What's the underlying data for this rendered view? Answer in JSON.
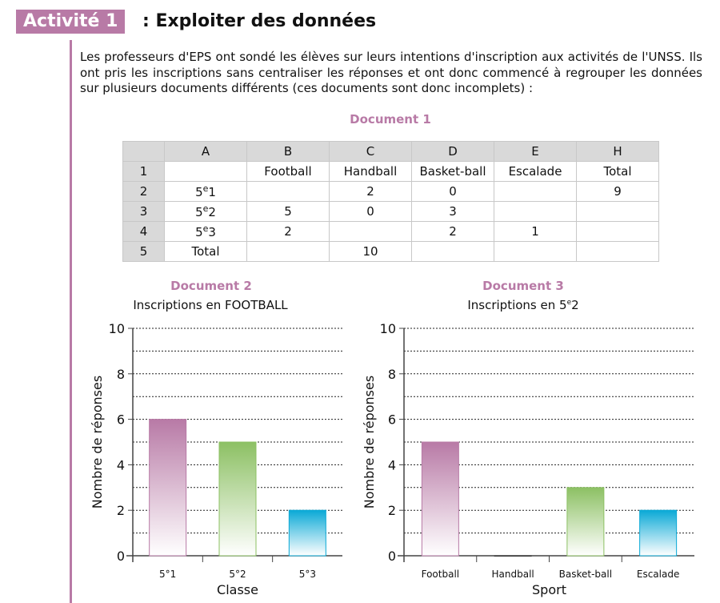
{
  "header": {
    "badge": "Activité 1",
    "title": ": Exploiter des données"
  },
  "intro": "Les professeurs d'EPS ont sondé les élèves sur leurs intentions d'inscription aux activités de l'UNSS. Ils ont pris les inscriptions sans centraliser les réponses et ont donc commencé à regrouper les données sur plusieurs documents différents (ces documents sont donc incomplets) :",
  "doc1": {
    "title": "Document 1",
    "col_headers": [
      "",
      "A",
      "B",
      "C",
      "D",
      "E",
      "H"
    ],
    "rows": [
      {
        "n": "1",
        "cells": [
          "",
          "Football",
          "Handball",
          "Basket-ball",
          "Escalade",
          "Total"
        ]
      },
      {
        "n": "2",
        "base": "5",
        "sup": "e",
        "num": "1",
        "cells": [
          "",
          "2",
          "0",
          "",
          "9"
        ]
      },
      {
        "n": "3",
        "base": "5",
        "sup": "e",
        "num": "2",
        "cells": [
          "5",
          "0",
          "3",
          "",
          ""
        ]
      },
      {
        "n": "4",
        "base": "5",
        "sup": "e",
        "num": "3",
        "cells": [
          "2",
          "",
          "2",
          "1",
          ""
        ]
      },
      {
        "n": "5",
        "label": "Total",
        "cells": [
          "",
          "10",
          "",
          "",
          ""
        ]
      }
    ]
  },
  "chart_data": [
    {
      "type": "bar",
      "doc": "Document 2",
      "title": "Inscriptions en FOOTBALL",
      "xlabel": "Classe",
      "ylabel": "Nombre de réponses",
      "categories": [
        "5°1",
        "5°2",
        "5°3"
      ],
      "values": [
        6,
        5,
        2
      ],
      "ylim": [
        0,
        10
      ],
      "yticks": [
        "0",
        "2",
        "4",
        "6",
        "8",
        "10"
      ],
      "colors": [
        "#b87aa6",
        "#8cc063",
        "#0aa9d6"
      ],
      "grid": "dashed every 1"
    },
    {
      "type": "bar",
      "doc": "Document 3",
      "title_pre": "Inscriptions en 5",
      "title_sup": "e",
      "title_post": "2",
      "xlabel": "Sport",
      "ylabel": "Nombre de réponses",
      "categories": [
        "Football",
        "Handball",
        "Basket-ball",
        "Escalade"
      ],
      "values": [
        5,
        0,
        3,
        2
      ],
      "ylim": [
        0,
        10
      ],
      "yticks": [
        "0",
        "2",
        "4",
        "6",
        "8",
        "10"
      ],
      "colors": [
        "#b87aa6",
        "#333333",
        "#8cc063",
        "#0aa9d6"
      ],
      "grid": "dashed every 1"
    }
  ]
}
